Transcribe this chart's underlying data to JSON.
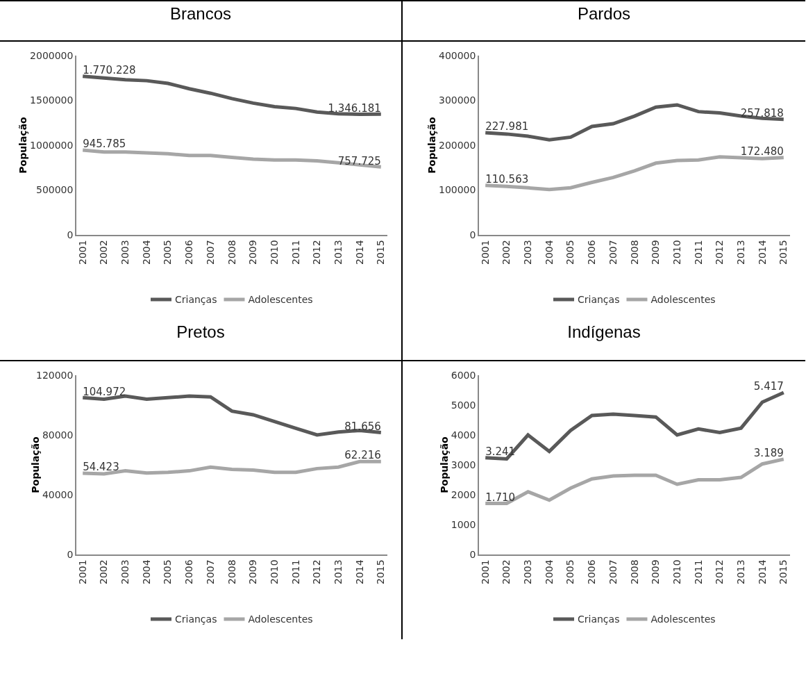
{
  "chart_data": [
    {
      "type": "line",
      "title": "Brancos",
      "ylabel": "População",
      "categories": [
        "2001",
        "2002",
        "2003",
        "2004",
        "2005",
        "2006",
        "2007",
        "2008",
        "2009",
        "2010",
        "2011",
        "2012",
        "2013",
        "2014",
        "2015"
      ],
      "ylim": [
        0,
        2000000
      ],
      "yticks": [
        0,
        500000,
        1000000,
        1500000,
        2000000
      ],
      "grid": false,
      "legend": "bottom",
      "marker": "none",
      "line_style": "solid",
      "series": [
        {
          "name": "Crianças",
          "color": "#595959",
          "values": [
            1770228,
            1750000,
            1730000,
            1720000,
            1690000,
            1630000,
            1580000,
            1520000,
            1470000,
            1430000,
            1410000,
            1370000,
            1350000,
            1345000,
            1346181
          ],
          "value_labels": [
            "1.770.228",
            null,
            null,
            null,
            null,
            null,
            null,
            null,
            null,
            null,
            null,
            null,
            null,
            null,
            "1.346.181"
          ]
        },
        {
          "name": "Adolescentes",
          "color": "#a6a6a6",
          "values": [
            945785,
            925000,
            925000,
            915000,
            905000,
            885000,
            885000,
            865000,
            845000,
            835000,
            835000,
            825000,
            805000,
            780000,
            757725
          ],
          "value_labels": [
            "945.785",
            null,
            null,
            null,
            null,
            null,
            null,
            null,
            null,
            null,
            null,
            null,
            null,
            null,
            "757.725"
          ]
        }
      ]
    },
    {
      "type": "line",
      "title": "Pardos",
      "ylabel": "População",
      "categories": [
        "2001",
        "2002",
        "2003",
        "2004",
        "2005",
        "2006",
        "2007",
        "2008",
        "2009",
        "2010",
        "2011",
        "2012",
        "2013",
        "2014",
        "2015"
      ],
      "ylim": [
        0,
        400000
      ],
      "yticks": [
        0,
        100000,
        200000,
        300000,
        400000
      ],
      "grid": false,
      "legend": "bottom",
      "marker": "none",
      "line_style": "solid",
      "series": [
        {
          "name": "Crianças",
          "color": "#595959",
          "values": [
            227981,
            225000,
            220000,
            212000,
            218000,
            242000,
            248000,
            265000,
            285000,
            290000,
            275000,
            272000,
            265000,
            260000,
            257818
          ],
          "value_labels": [
            "227.981",
            null,
            null,
            null,
            null,
            null,
            null,
            null,
            null,
            null,
            null,
            null,
            null,
            null,
            "257.818"
          ]
        },
        {
          "name": "Adolescentes",
          "color": "#a6a6a6",
          "values": [
            110563,
            108000,
            105000,
            101000,
            105000,
            117000,
            128000,
            143000,
            160000,
            166000,
            167000,
            174000,
            172000,
            170000,
            172480
          ],
          "value_labels": [
            "110.563",
            null,
            null,
            null,
            null,
            null,
            null,
            null,
            null,
            null,
            null,
            null,
            null,
            null,
            "172.480"
          ]
        }
      ]
    },
    {
      "type": "line",
      "title": "Pretos",
      "ylabel": "População",
      "categories": [
        "2001",
        "2002",
        "2003",
        "2004",
        "2005",
        "2006",
        "2007",
        "2008",
        "2009",
        "2010",
        "2011",
        "2012",
        "2013",
        "2014",
        "2015"
      ],
      "ylim": [
        0,
        120000
      ],
      "yticks": [
        0,
        40000,
        80000,
        120000
      ],
      "grid": false,
      "legend": "bottom",
      "marker": "none",
      "line_style": "solid",
      "series": [
        {
          "name": "Crianças",
          "color": "#595959",
          "values": [
            104972,
            104000,
            106000,
            104000,
            105000,
            106000,
            105500,
            96000,
            93500,
            89000,
            84500,
            80000,
            82000,
            83000,
            81656
          ],
          "value_labels": [
            "104.972",
            null,
            null,
            null,
            null,
            null,
            null,
            null,
            null,
            null,
            null,
            null,
            null,
            null,
            "81.656"
          ]
        },
        {
          "name": "Adolescentes",
          "color": "#a6a6a6",
          "values": [
            54423,
            54000,
            56000,
            54500,
            55000,
            56000,
            58500,
            57000,
            56500,
            55000,
            55000,
            57500,
            58500,
            62200,
            62216
          ],
          "value_labels": [
            "54.423",
            null,
            null,
            null,
            null,
            null,
            null,
            null,
            null,
            null,
            null,
            null,
            null,
            null,
            "62.216"
          ]
        }
      ]
    },
    {
      "type": "line",
      "title": "Indígenas",
      "ylabel": "População",
      "categories": [
        "2001",
        "2002",
        "2003",
        "2004",
        "2005",
        "2006",
        "2007",
        "2008",
        "2009",
        "2010",
        "2011",
        "2012",
        "2013",
        "2014",
        "2015"
      ],
      "ylim": [
        0,
        6000
      ],
      "yticks": [
        0,
        1000,
        2000,
        3000,
        4000,
        5000,
        6000
      ],
      "grid": false,
      "legend": "bottom",
      "marker": "none",
      "line_style": "solid",
      "series": [
        {
          "name": "Crianças",
          "color": "#595959",
          "values": [
            3241,
            3200,
            4000,
            3450,
            4150,
            4650,
            4700,
            4650,
            4600,
            4000,
            4200,
            4080,
            4230,
            5100,
            5417
          ],
          "value_labels": [
            "3.241",
            null,
            null,
            null,
            null,
            null,
            null,
            null,
            null,
            null,
            null,
            null,
            null,
            null,
            "5.417"
          ]
        },
        {
          "name": "Adolescentes",
          "color": "#a6a6a6",
          "values": [
            1710,
            1710,
            2100,
            1820,
            2220,
            2530,
            2630,
            2650,
            2650,
            2350,
            2500,
            2500,
            2580,
            3030,
            3189
          ],
          "value_labels": [
            "1.710",
            null,
            null,
            null,
            null,
            null,
            null,
            null,
            null,
            null,
            null,
            null,
            null,
            null,
            "3.189"
          ]
        }
      ]
    }
  ]
}
